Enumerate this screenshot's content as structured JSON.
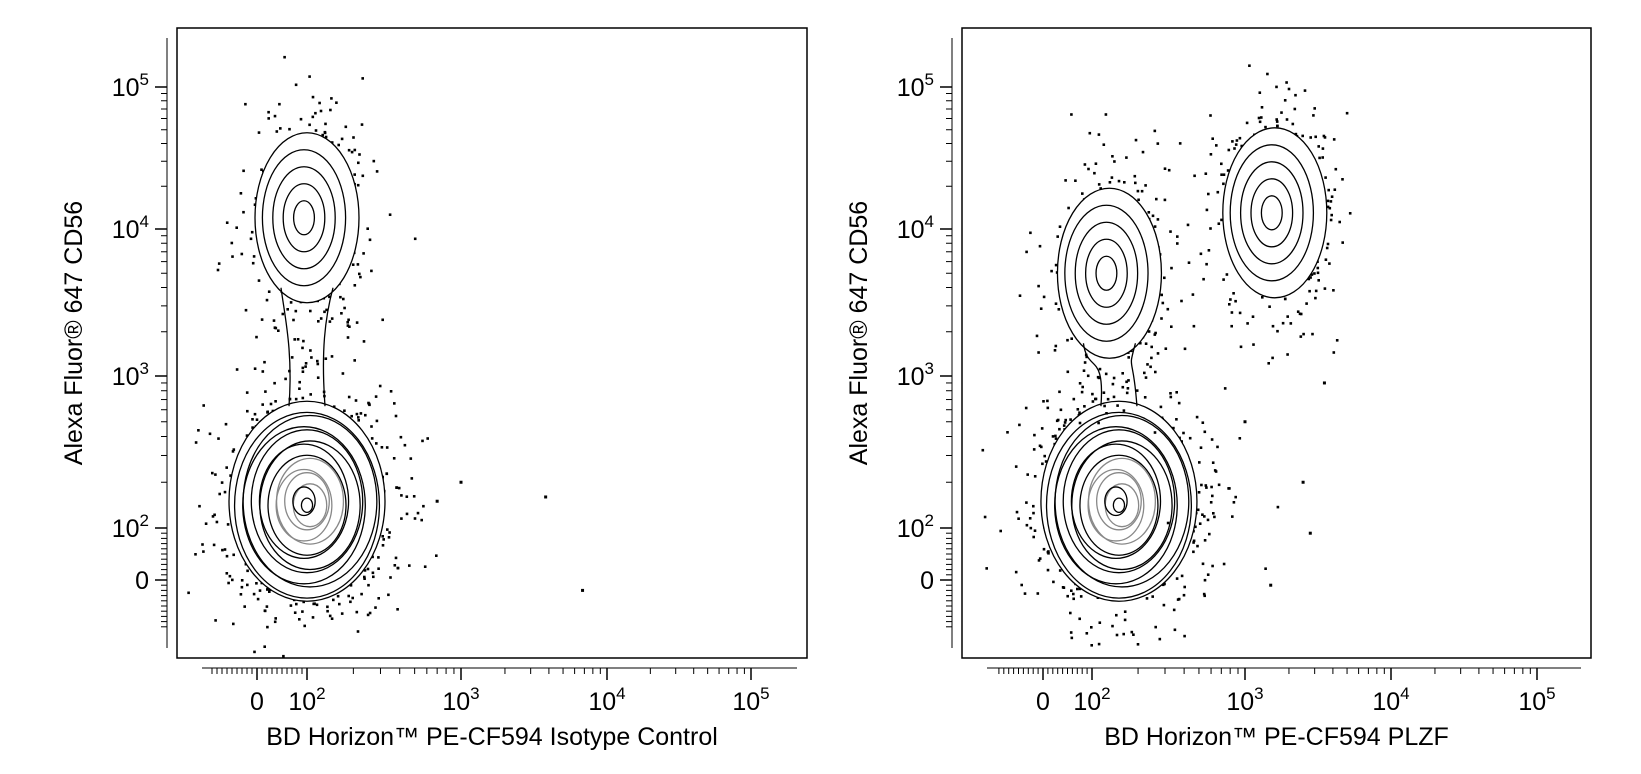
{
  "chart_data": [
    {
      "type": "scatter",
      "subtype": "flow-cytometry contour plot with outliers",
      "xlabel": "BD Horizon™ PE-CF594 Isotype Control",
      "ylabel": "Alexa Fluor® 647 CD56",
      "x_scale": "biexponential",
      "y_scale": "biexponential",
      "x_ticks": [
        {
          "value": "0",
          "base": "0",
          "exp": ""
        },
        {
          "value": "10^2",
          "base": "10",
          "exp": "2"
        },
        {
          "value": "10^3",
          "base": "10",
          "exp": "3"
        },
        {
          "value": "10^4",
          "base": "10",
          "exp": "4"
        },
        {
          "value": "10^5",
          "base": "10",
          "exp": "5"
        }
      ],
      "y_ticks": [
        {
          "value": "0",
          "base": "0",
          "exp": ""
        },
        {
          "value": "10^2",
          "base": "10",
          "exp": "2"
        },
        {
          "value": "10^3",
          "base": "10",
          "exp": "3"
        },
        {
          "value": "10^4",
          "base": "10",
          "exp": "4"
        },
        {
          "value": "10^5",
          "base": "10",
          "exp": "5"
        }
      ],
      "populations": [
        {
          "x": 100,
          "y": 150,
          "role": "CD56-dim / negative main population",
          "density": "high"
        },
        {
          "x": 100,
          "y": 12000,
          "role": "CD56-bright",
          "density": "medium"
        }
      ],
      "outliers": [
        {
          "x": 700,
          "y": 150
        },
        {
          "x": 1000,
          "y": 200
        },
        {
          "x": 3800,
          "y": 160
        },
        {
          "x": 6800,
          "y": -20
        }
      ]
    },
    {
      "type": "scatter",
      "subtype": "flow-cytometry contour plot with outliers",
      "xlabel": "BD Horizon™ PE-CF594 PLZF",
      "ylabel": "Alexa Fluor® 647 CD56",
      "x_scale": "biexponential",
      "y_scale": "biexponential",
      "x_ticks": [
        {
          "value": "0",
          "base": "0",
          "exp": ""
        },
        {
          "value": "10^2",
          "base": "10",
          "exp": "2"
        },
        {
          "value": "10^3",
          "base": "10",
          "exp": "3"
        },
        {
          "value": "10^4",
          "base": "10",
          "exp": "4"
        },
        {
          "value": "10^5",
          "base": "10",
          "exp": "5"
        }
      ],
      "y_ticks": [
        {
          "value": "0",
          "base": "0",
          "exp": ""
        },
        {
          "value": "10^2",
          "base": "10",
          "exp": "2"
        },
        {
          "value": "10^3",
          "base": "10",
          "exp": "3"
        },
        {
          "value": "10^4",
          "base": "10",
          "exp": "4"
        },
        {
          "value": "10^5",
          "base": "10",
          "exp": "5"
        }
      ],
      "populations": [
        {
          "x": 150,
          "y": 150,
          "role": "PLZF- main population",
          "density": "high"
        },
        {
          "x": 130,
          "y": 5000,
          "role": "PLZF- CD56-bright",
          "density": "medium"
        },
        {
          "x": 1600,
          "y": 13000,
          "role": "PLZF+ CD56+",
          "density": "medium"
        }
      ],
      "outliers": [
        {
          "x": 1000,
          "y": 500
        },
        {
          "x": 2500,
          "y": 200
        },
        {
          "x": 2800,
          "y": 90
        },
        {
          "x": 1500,
          "y": -10
        },
        {
          "x": 3500,
          "y": 900
        }
      ]
    }
  ]
}
